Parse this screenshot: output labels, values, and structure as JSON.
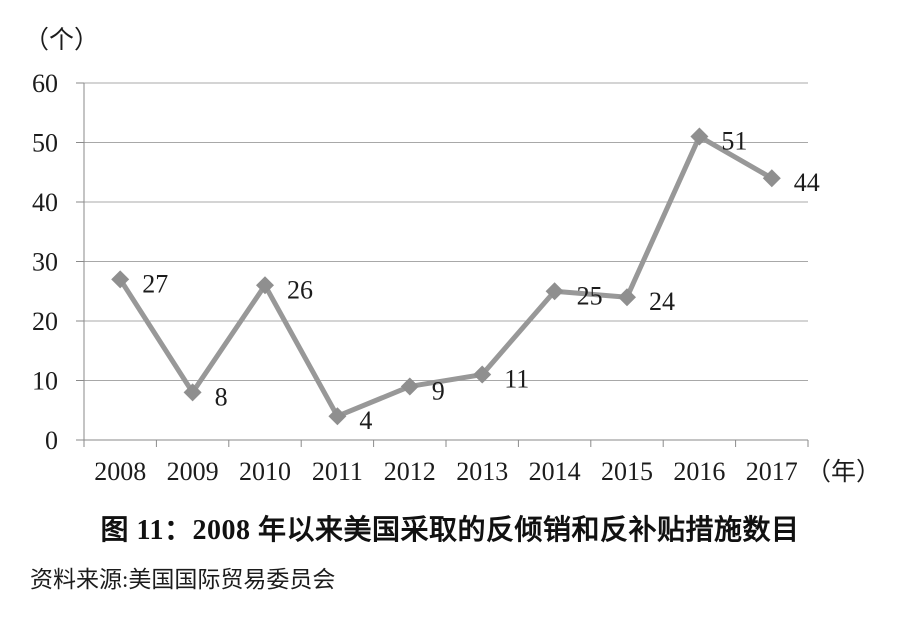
{
  "caption": "图 11：2008 年以来美国采取的反倾销和反补贴措施数目",
  "source": "资料来源:美国国际贸易委员会",
  "colors": {
    "line": "#989898",
    "marker": "#8f8f8f",
    "grid": "#a8a8a8",
    "axis": "#8a8a8a",
    "text": "#1c1c1c"
  },
  "chart_data": {
    "type": "line",
    "title": "图 11：2008 年以来美国采取的反倾销和反补贴措施数目",
    "categories": [
      "2008",
      "2009",
      "2010",
      "2011",
      "2012",
      "2013",
      "2014",
      "2015",
      "2016",
      "2017"
    ],
    "values": [
      27,
      8,
      26,
      4,
      9,
      11,
      25,
      24,
      51,
      44
    ],
    "data_labels": [
      "27",
      "8",
      "26",
      "4",
      "9",
      "11",
      "25",
      "24",
      "51",
      "44"
    ],
    "xlabel": "（年）",
    "ylabel": "（个）",
    "ylim": [
      0,
      60
    ],
    "ytick_interval": 10,
    "yticks": [
      "0",
      "10",
      "20",
      "30",
      "40",
      "50",
      "60"
    ],
    "grid": true,
    "legend": "none",
    "marker": "diamond"
  }
}
